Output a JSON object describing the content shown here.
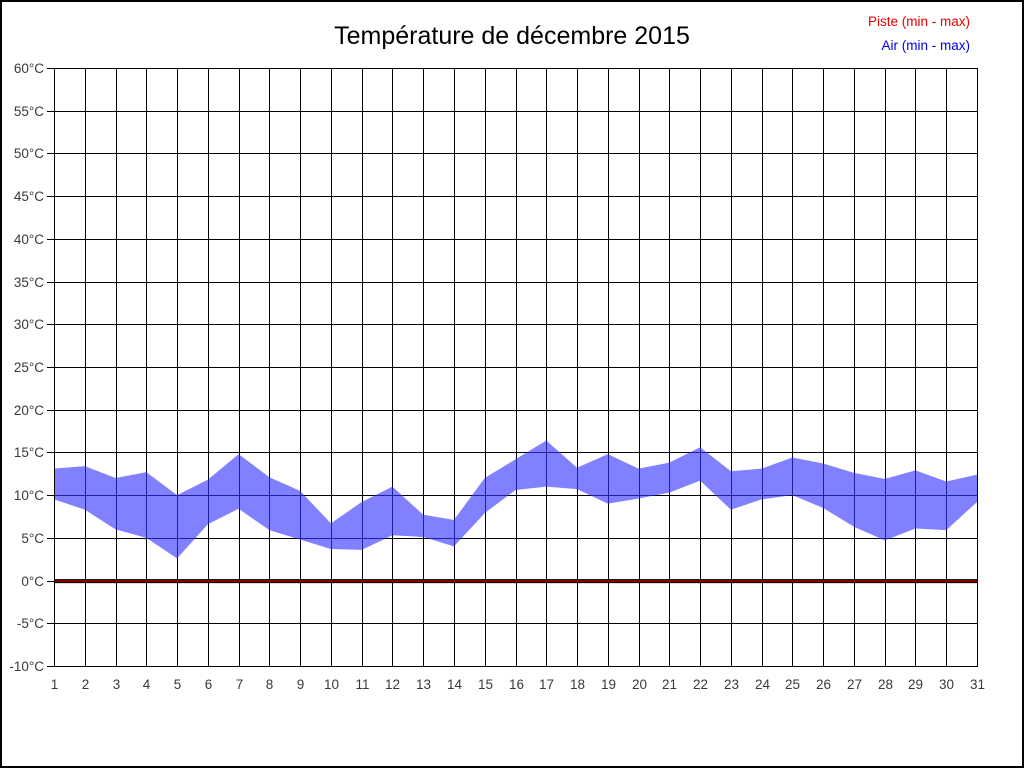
{
  "title": "Température de décembre 2015",
  "legend": [
    {
      "id": "piste",
      "label": "Piste (min - max)",
      "color": "#ee0000"
    },
    {
      "id": "air",
      "label": "Air (min - max)",
      "color": "#0000ee"
    }
  ],
  "colors": {
    "grid": "#000000",
    "axis_text": "#3a3a3a",
    "air_band_fill": "#3333ff",
    "air_band_opacity": 0.62,
    "piste_core": "#8b0000",
    "piste_outline": "#000000",
    "background": "#ffffff"
  },
  "chart_data": {
    "type": "area",
    "title": "Température de décembre 2015",
    "xlabel": "",
    "ylabel": "",
    "y_unit": "°C",
    "ylim": [
      -10,
      60
    ],
    "ytick_step": 5,
    "ytick_labels": [
      "60°C",
      "55°C",
      "50°C",
      "45°C",
      "40°C",
      "35°C",
      "30°C",
      "25°C",
      "20°C",
      "15°C",
      "10°C",
      "5°C",
      "0°C",
      "-5°C",
      "-10°C"
    ],
    "grid": true,
    "legend_position": "top-right",
    "x": [
      1,
      2,
      3,
      4,
      5,
      6,
      7,
      8,
      9,
      10,
      11,
      12,
      13,
      14,
      15,
      16,
      17,
      18,
      19,
      20,
      21,
      22,
      23,
      24,
      25,
      26,
      27,
      28,
      29,
      30,
      31
    ],
    "series": [
      {
        "name": "Piste (min - max)",
        "min": [
          0,
          0,
          0,
          0,
          0,
          0,
          0,
          0,
          0,
          0,
          0,
          0,
          0,
          0,
          0,
          0,
          0,
          0,
          0,
          0,
          0,
          0,
          0,
          0,
          0,
          0,
          0,
          0,
          0,
          0,
          0
        ],
        "max": [
          0,
          0,
          0,
          0,
          0,
          0,
          0,
          0,
          0,
          0,
          0,
          0,
          0,
          0,
          0,
          0,
          0,
          0,
          0,
          0,
          0,
          0,
          0,
          0,
          0,
          0,
          0,
          0,
          0,
          0,
          0
        ]
      },
      {
        "name": "Air (min - max)",
        "min": [
          9.5,
          8.3,
          6.0,
          5.0,
          2.6,
          6.6,
          8.4,
          5.9,
          4.8,
          3.7,
          3.6,
          5.3,
          5.1,
          4.0,
          7.9,
          10.6,
          11.0,
          10.7,
          9.0,
          9.6,
          10.3,
          11.7,
          8.3,
          9.5,
          10.0,
          8.5,
          6.3,
          4.7,
          6.1,
          5.9,
          9.2
        ],
        "max": [
          13.1,
          13.4,
          12.0,
          12.7,
          10.0,
          11.8,
          14.8,
          12.1,
          10.5,
          6.7,
          9.2,
          11.0,
          7.7,
          7.1,
          12.0,
          14.2,
          16.4,
          13.2,
          14.8,
          13.1,
          13.8,
          15.6,
          12.8,
          13.1,
          14.4,
          13.7,
          12.6,
          11.9,
          12.9,
          11.6,
          12.4
        ]
      }
    ]
  }
}
